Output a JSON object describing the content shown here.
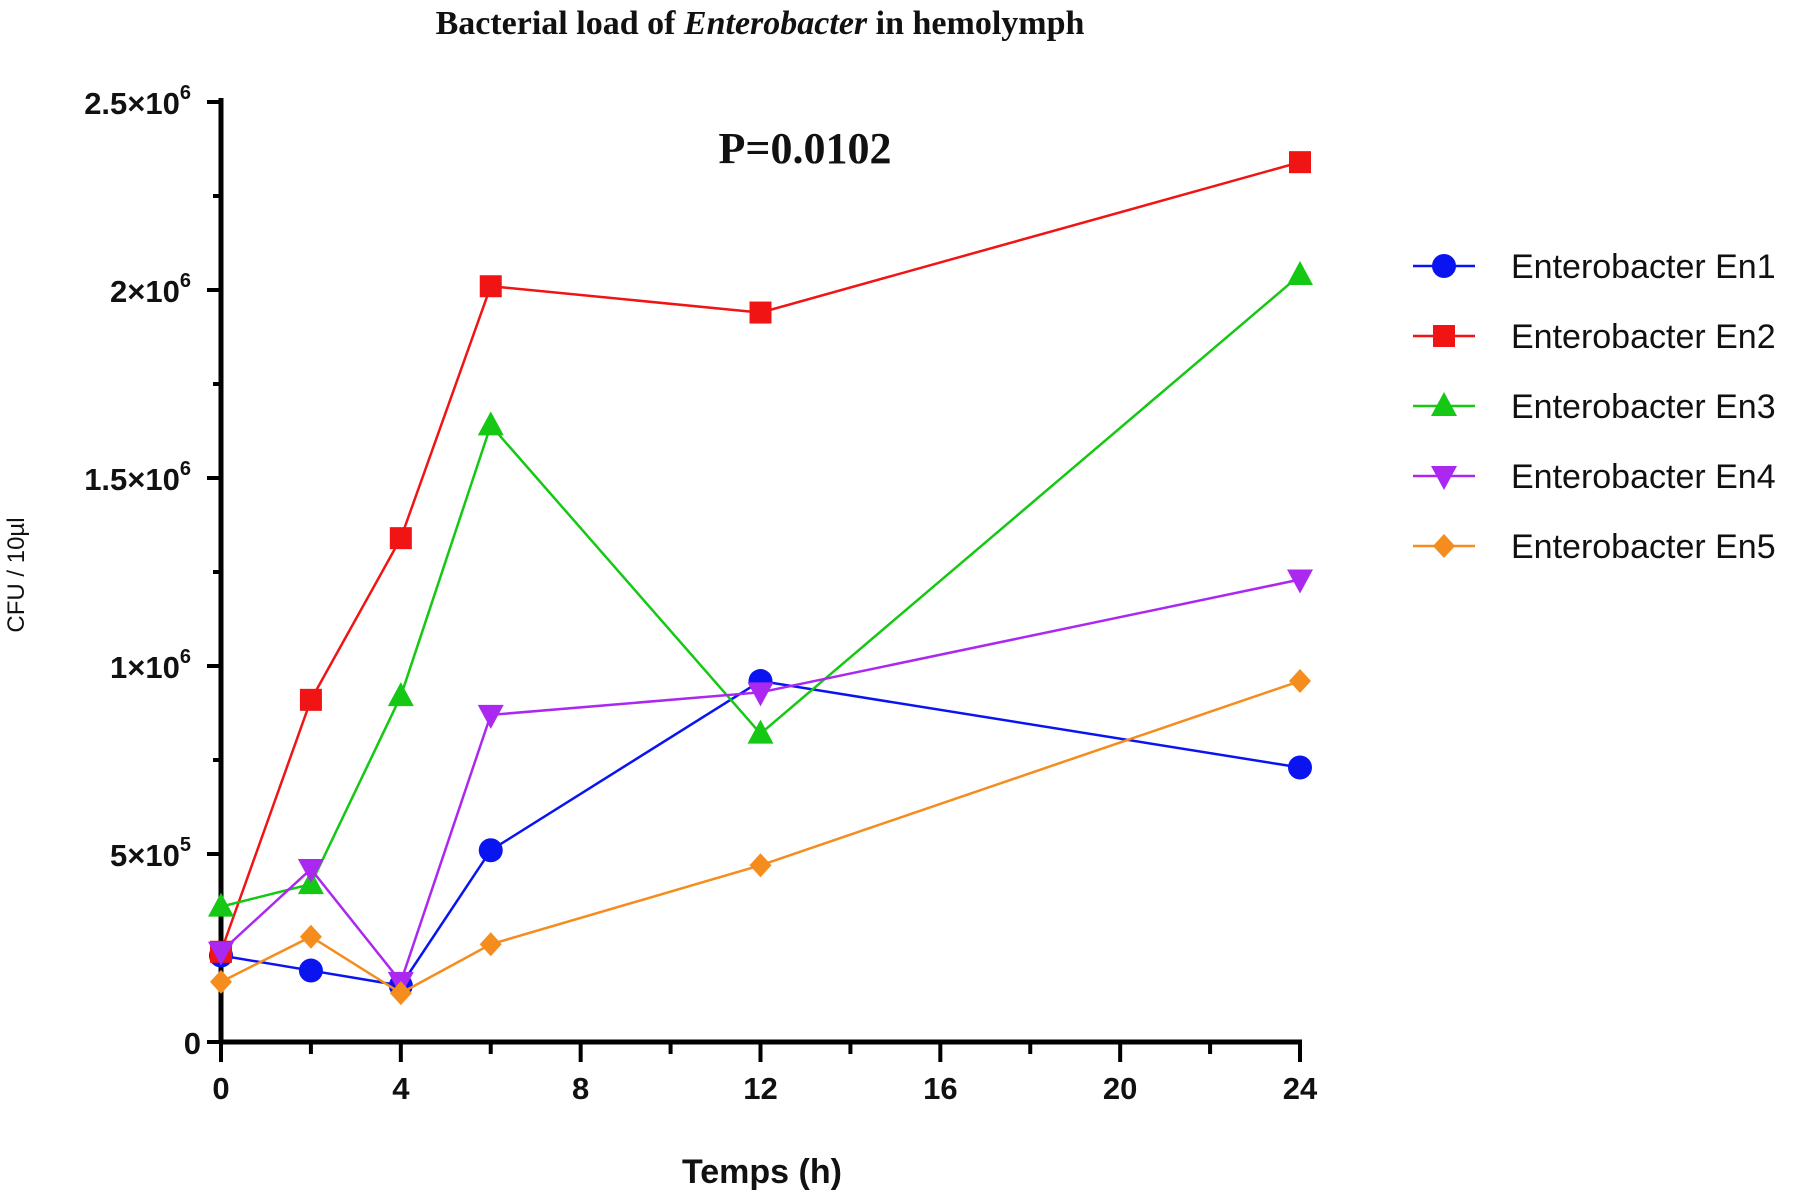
{
  "chart_data": {
    "type": "line",
    "title_prefix": "Bacterial load of ",
    "title_italic": "Enterobacter",
    "title_suffix": " in hemolymph",
    "annotation": "P=0.0102",
    "xlabel": "Temps (h)",
    "ylabel": "CFU / 10µl",
    "xlim": [
      0,
      24
    ],
    "ylim": [
      0,
      2500000
    ],
    "x_ticks": [
      0,
      4,
      8,
      12,
      16,
      20,
      24
    ],
    "y_ticks": [
      {
        "value": 0,
        "mant": "0",
        "exp": ""
      },
      {
        "value": 500000,
        "mant": "5×10",
        "exp": "5"
      },
      {
        "value": 1000000,
        "mant": "1×10",
        "exp": "6"
      },
      {
        "value": 1500000,
        "mant": "1.5×10",
        "exp": "6"
      },
      {
        "value": 2000000,
        "mant": "2×10",
        "exp": "6"
      },
      {
        "value": 2500000,
        "mant": "2.5×10",
        "exp": "6"
      }
    ],
    "legend_position": "right",
    "x": [
      0,
      2,
      4,
      6,
      12,
      24
    ],
    "series": [
      {
        "name": "Enterobacter En1",
        "color": "#0a14f0",
        "marker": "circle",
        "values": [
          230000,
          190000,
          150000,
          510000,
          960000,
          730000
        ]
      },
      {
        "name": "Enterobacter En2",
        "color": "#f01414",
        "marker": "square",
        "values": [
          240000,
          910000,
          1340000,
          2010000,
          1940000,
          2340000
        ]
      },
      {
        "name": "Enterobacter En3",
        "color": "#14c814",
        "marker": "triangle-up",
        "values": [
          360000,
          420000,
          920000,
          1640000,
          820000,
          2040000
        ]
      },
      {
        "name": "Enterobacter En4",
        "color": "#aa28f0",
        "marker": "triangle-down",
        "values": [
          240000,
          460000,
          160000,
          870000,
          930000,
          1230000
        ]
      },
      {
        "name": "Enterobacter En5",
        "color": "#f58c1e",
        "marker": "diamond",
        "values": [
          160000,
          280000,
          130000,
          260000,
          470000,
          960000
        ]
      }
    ]
  }
}
